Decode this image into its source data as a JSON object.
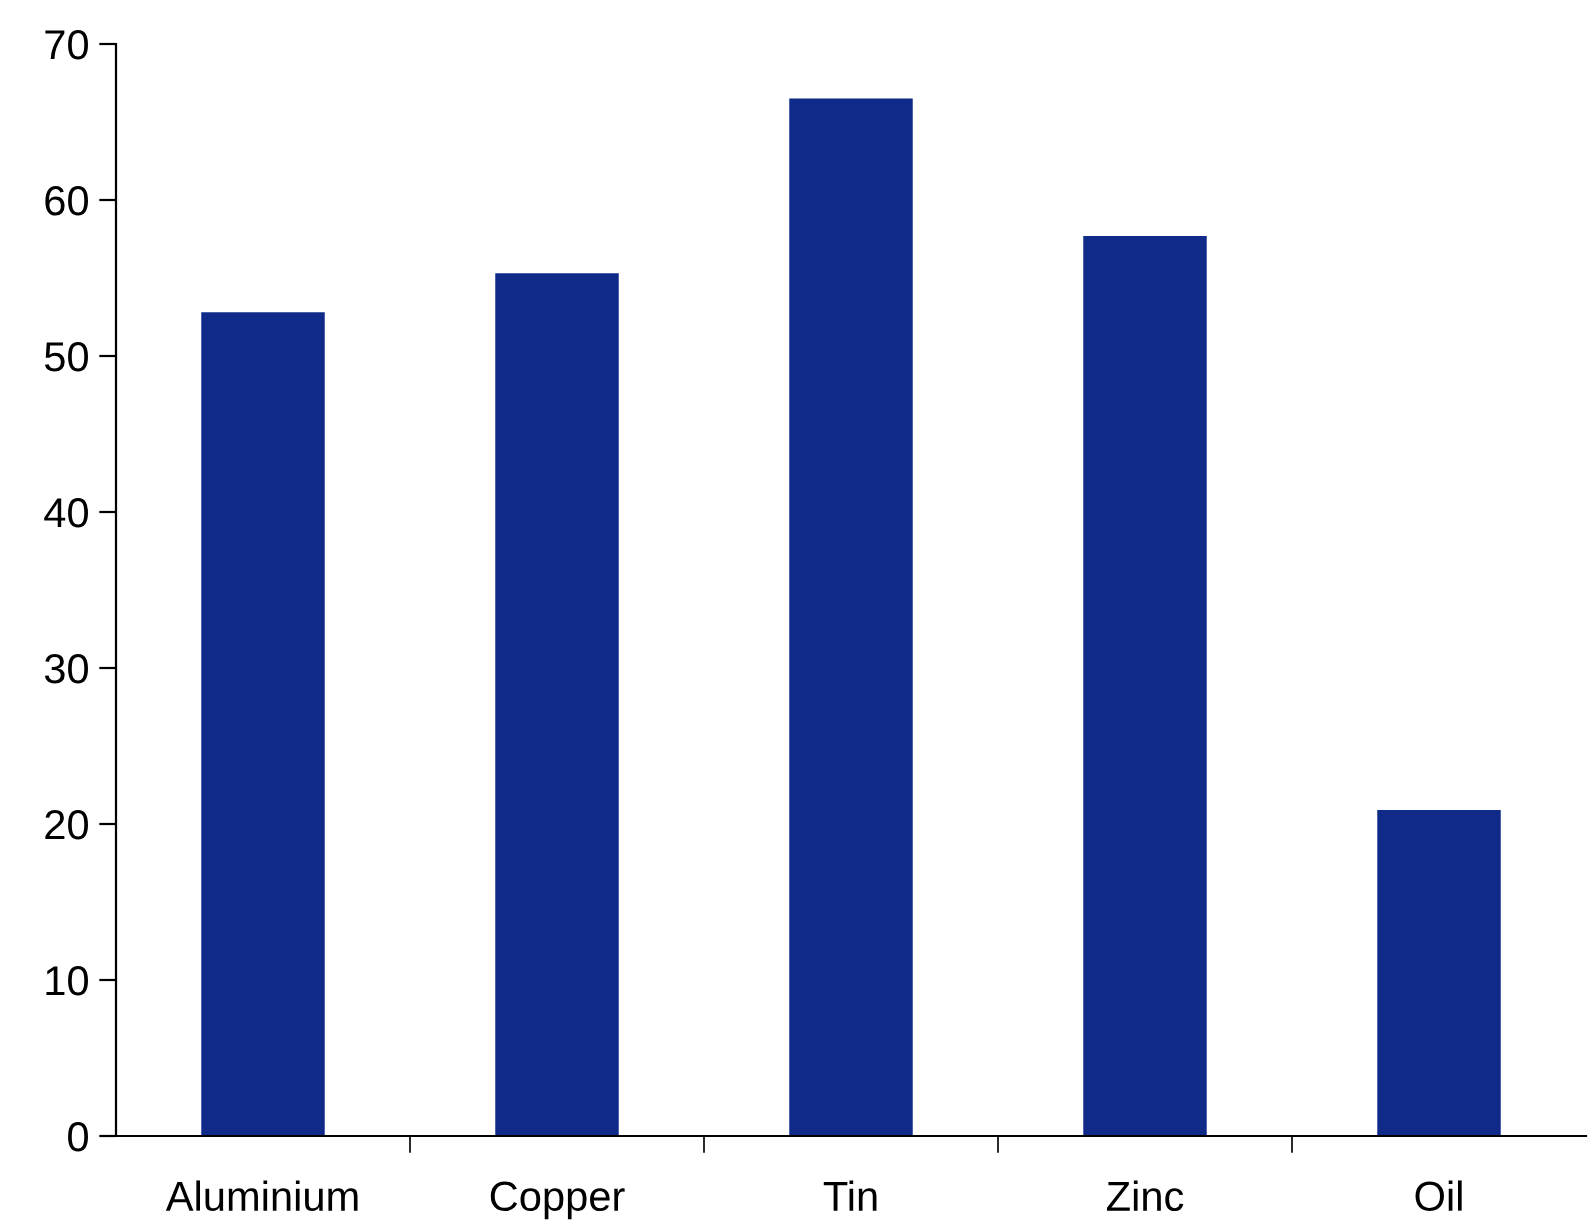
{
  "chart_data": {
    "type": "bar",
    "categories": [
      "Aluminium",
      "Copper",
      "Tin",
      "Zinc",
      "Oil"
    ],
    "values": [
      52.8,
      55.3,
      66.5,
      57.7,
      20.9
    ],
    "color": "#0f2a88",
    "ylim": [
      0,
      70
    ],
    "yticks": [
      0,
      10,
      20,
      30,
      40,
      50,
      60,
      70
    ],
    "grid": false,
    "legend": false
  }
}
